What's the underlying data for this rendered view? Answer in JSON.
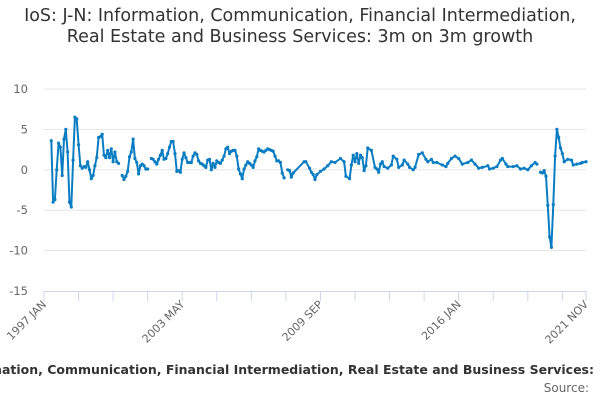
{
  "chart_data": {
    "type": "line",
    "title": "IoS: J-N: Information, Communication, Financial Intermediation, Real Estate and Business Services: 3m on 3m growth",
    "xlabel": "",
    "ylabel": "",
    "x_range": [
      "1997-01",
      "2021-11"
    ],
    "ylim": [
      -15,
      10
    ],
    "y_ticks": [
      10,
      5,
      0,
      -5,
      -10,
      -15
    ],
    "x_tick_labels": [
      {
        "date": "1997-01",
        "label": "1997 JAN"
      },
      {
        "date": "2003-05",
        "label": "2003 MAY"
      },
      {
        "date": "2009-09",
        "label": "2009 SEP"
      },
      {
        "date": "2016-01",
        "label": "2016 JAN"
      },
      {
        "date": "2021-11",
        "label": "2021 NOV"
      }
    ],
    "grid": true,
    "legend": "none",
    "line_color": "#0a7dc2",
    "grid_color": "#e6e6e6",
    "axis_color": "#ccd6eb",
    "series": [
      {
        "x": [
          "1997-05",
          "1997-06",
          "1997-07",
          "1997-08",
          "1997-09",
          "1997-10",
          "1997-11",
          "1997-12",
          "1998-01",
          "1998-02",
          "1998-03",
          "1998-04",
          "1998-05",
          "1998-06",
          "1998-07",
          "1998-08",
          "1998-09",
          "1998-10",
          "1998-11",
          "1998-12",
          "1999-01",
          "1999-02",
          "1999-03",
          "1999-04",
          "1999-05",
          "1999-06",
          "1999-07",
          "1999-08",
          "1999-09",
          "1999-10",
          "1999-11",
          "1999-12",
          "2000-01",
          "2000-02",
          "2000-03",
          "2000-04",
          "2000-05",
          "2000-06",
          "2000-07",
          "2000-08",
          "2000-09",
          "2000-10",
          "2000-11",
          "2000-12",
          "2001-01",
          "2001-02",
          "2001-03",
          "2001-04",
          "2001-05",
          "2001-06",
          "2001-07",
          "2001-08",
          "2001-09",
          "2001-10",
          "2001-11",
          "2001-12",
          "2002-01",
          "2002-02",
          "2002-03",
          "2002-04",
          "2002-05",
          "2002-06",
          "2002-07",
          "2002-08",
          "2002-09",
          "2002-10",
          "2002-11",
          "2002-12",
          "2003-01",
          "2003-02",
          "2003-03",
          "2003-04",
          "2003-05",
          "2003-06",
          "2003-07",
          "2003-08",
          "2003-09",
          "2003-10",
          "2003-11",
          "2003-12",
          "2004-01",
          "2004-02",
          "2004-03",
          "2004-04",
          "2004-05",
          "2004-06",
          "2004-07",
          "2004-08",
          "2004-09",
          "2004-10",
          "2004-11",
          "2004-12",
          "2005-01",
          "2005-02",
          "2005-03",
          "2005-04",
          "2005-05",
          "2005-06",
          "2005-07",
          "2005-08",
          "2005-09",
          "2005-10",
          "2005-11",
          "2005-12",
          "2006-01",
          "2006-02",
          "2006-03",
          "2006-04",
          "2006-05",
          "2006-06",
          "2006-07",
          "2006-08",
          "2006-09",
          "2006-10",
          "2006-11",
          "2006-12",
          "2007-01",
          "2007-02",
          "2007-03",
          "2007-04",
          "2007-05",
          "2007-06",
          "2007-07",
          "2007-08",
          "2007-09",
          "2007-10",
          "2007-11",
          "2007-12",
          "2008-01",
          "2008-02",
          "2008-03",
          "2008-04",
          "2008-05",
          "2008-06",
          "2008-12",
          "2009-01",
          "2009-03",
          "2009-04",
          "2009-05",
          "2009-06",
          "2009-07",
          "2009-09",
          "2009-11",
          "2010-01",
          "2010-03",
          "2010-05",
          "2010-08",
          "2010-10",
          "2010-11",
          "2011-01",
          "2011-02",
          "2011-03",
          "2011-04",
          "2011-05",
          "2011-06",
          "2011-07",
          "2011-08",
          "2011-09",
          "2011-10",
          "2011-11",
          "2012-01",
          "2012-03",
          "2012-04",
          "2012-05",
          "2012-06",
          "2012-07",
          "2012-08",
          "2012-10",
          "2012-12",
          "2013-01",
          "2013-03",
          "2013-04",
          "2013-06",
          "2013-07",
          "2013-09",
          "2013-10",
          "2013-12",
          "2014-01",
          "2014-03",
          "2014-05",
          "2014-07",
          "2014-08",
          "2014-10",
          "2014-11",
          "2015-01",
          "2015-04",
          "2015-06",
          "2015-07",
          "2015-09",
          "2015-11",
          "2016-01",
          "2016-03",
          "2016-06",
          "2016-08",
          "2016-10",
          "2016-12",
          "2017-02",
          "2017-05",
          "2017-06",
          "2017-08",
          "2017-10",
          "2017-12",
          "2018-01",
          "2018-03",
          "2018-04",
          "2018-07",
          "2018-09",
          "2018-11",
          "2019-01",
          "2019-03",
          "2019-05",
          "2019-07",
          "2019-08",
          "2019-09",
          "2019-10",
          "2019-11",
          "2019-12",
          "2020-01",
          "2020-02",
          "2020-03",
          "2020-04",
          "2020-05",
          "2020-06",
          "2020-07",
          "2020-08",
          "2020-09",
          "2020-10",
          "2020-11",
          "2021-01",
          "2021-03",
          "2021-04",
          "2021-06",
          "2021-08",
          "2021-09",
          "2021-11"
        ],
        "y": [
          3.6,
          -4.0,
          -3.7,
          0,
          3.3,
          2.8,
          -0.7,
          3.8,
          5.0,
          2.2,
          -4.0,
          -4.6,
          1.2,
          6.5,
          6.3,
          3.1,
          0.5,
          0.2,
          0.4,
          0.3,
          1.0,
          0,
          -1.1,
          -0.7,
          0.5,
          1.5,
          4.0,
          4.1,
          4.4,
          1.8,
          1.5,
          2.4,
          1.5,
          2.6,
          1.0,
          2.2,
          1.0,
          0.8,
          null,
          -0.7,
          -1.2,
          -0.8,
          -0.2,
          1.6,
          2.2,
          3.8,
          1.4,
          0.9,
          -0.5,
          0.5,
          0.7,
          0.5,
          0.1,
          0.1,
          null,
          1.4,
          1.3,
          1.0,
          0.7,
          1.3,
          1.8,
          2.4,
          1.3,
          1.4,
          2.0,
          2.8,
          3.5,
          3.5,
          2.0,
          -0.2,
          -0.1,
          -0.3,
          1.3,
          2.1,
          1.5,
          0.9,
          0.9,
          0.9,
          1.7,
          2.1,
          1.9,
          1.1,
          0.8,
          0.7,
          0.5,
          0.3,
          1.2,
          1.3,
          0,
          0.8,
          0.3,
          1.1,
          0.9,
          0.8,
          1.2,
          1.7,
          2.6,
          2.8,
          2.0,
          2.3,
          2.4,
          2.4,
          1.7,
          0.1,
          -0.5,
          -1.1,
          0.1,
          0.6,
          1.0,
          0.8,
          0.6,
          0.3,
          1.1,
          1.6,
          2.6,
          2.4,
          2.3,
          2.2,
          2.4,
          2.6,
          2.5,
          2.4,
          2.3,
          1.7,
          1.1,
          1.1,
          0.9,
          -0.4,
          -1.0,
          null,
          0,
          -0.1,
          -0.9,
          -0.4,
          1.0,
          1.0,
          0.2,
          -0.3,
          -0.6,
          -1.2,
          -0.6,
          -0.2,
          0.1,
          0.5,
          1.0,
          0.9,
          1.4,
          1.0,
          -0.8,
          -1.1,
          0.6,
          1.8,
          1.0,
          2.0,
          0.8,
          1.8,
          1.5,
          -0.1,
          0.5,
          2.7,
          2.4,
          0.3,
          0.1,
          -0.3,
          0.7,
          1.0,
          0.4,
          0.2,
          0.6,
          1.7,
          1.3,
          0.3,
          0.6,
          1.2,
          0.7,
          0.3,
          0,
          0.3,
          1.9,
          2.1,
          1.3,
          1.0,
          1.3,
          0.9,
          0.9,
          0.6,
          0.4,
          0.8,
          1.4,
          1.7,
          1.4,
          0.7,
          0.9,
          1.2,
          0.7,
          0.2,
          0.3,
          0.5,
          0.1,
          0.2,
          0.4,
          1.2,
          1.4,
          0.7,
          0.4,
          0.4,
          0.5,
          0.1,
          0.2,
          0,
          0.5,
          0.9,
          0.7,
          null,
          -0.3,
          -0.4,
          -0.1,
          -0.8,
          -4.4,
          -8.3,
          -9.6,
          -4.3,
          1.7,
          5.0,
          4.0,
          2.7,
          2.0,
          1.0,
          1.3,
          1.2,
          0.6,
          0.7,
          0.8,
          0.9,
          1.0
        ]
      }
    ]
  },
  "footer": {
    "caption": "nation, Communication, Financial Intermediation, Real Estate and Business Services:",
    "source_label": "Source:"
  }
}
